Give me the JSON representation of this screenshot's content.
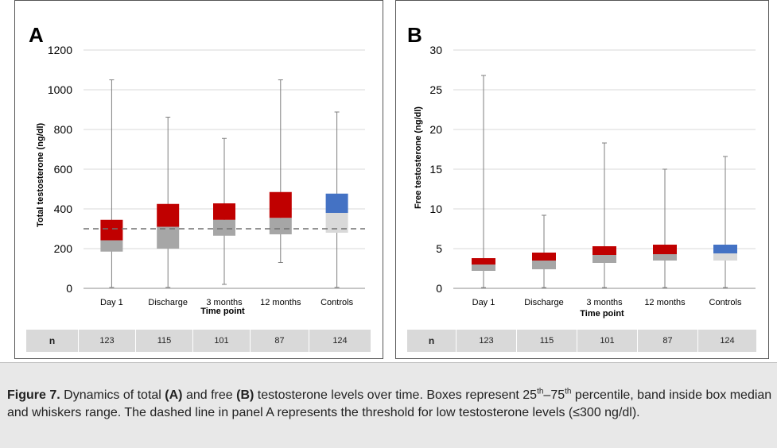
{
  "chart_data": [
    {
      "type": "box",
      "panel_label": "A",
      "categories": [
        "Day 1",
        "Discharge",
        "3 months",
        "12 months",
        "Controls"
      ],
      "xlabel": "Time point",
      "ylabel": "Total testosterone (ng/dl)",
      "ylim": [
        0,
        1200
      ],
      "yticks": [
        0,
        200,
        400,
        600,
        800,
        1000,
        1200
      ],
      "grid": true,
      "boxes": [
        {
          "min": 5,
          "q1": 185,
          "median": 242,
          "q3": 345,
          "max": 1050
        },
        {
          "min": 5,
          "q1": 200,
          "median": 310,
          "q3": 425,
          "max": 862
        },
        {
          "min": 20,
          "q1": 265,
          "median": 345,
          "q3": 428,
          "max": 755
        },
        {
          "min": 130,
          "q1": 272,
          "median": 355,
          "q3": 485,
          "max": 1050
        },
        {
          "min": 5,
          "q1": 280,
          "median": 380,
          "q3": 477,
          "max": 888
        }
      ],
      "reference_line": {
        "value": 300,
        "style": "dashed"
      },
      "n_label": "n",
      "n_values": [
        "123",
        "115",
        "101",
        "87",
        "124"
      ],
      "colors": {
        "upper": "#c00000",
        "lower": "#a6a6a6",
        "control_upper": "#4472c4",
        "control_lower": "#d9d9d9",
        "whisker": "#7f7f7f",
        "grid": "#d9d9d9",
        "reference": "#707070"
      }
    },
    {
      "type": "box",
      "panel_label": "B",
      "categories": [
        "Day 1",
        "Discharge",
        "3 months",
        "12 months",
        "Controls"
      ],
      "xlabel": "Time point",
      "ylabel": "Free testosterone (ng/dl)",
      "ylim": [
        0,
        30
      ],
      "yticks": [
        0,
        5,
        10,
        15,
        20,
        25,
        30
      ],
      "grid": true,
      "boxes": [
        {
          "min": 0.1,
          "q1": 2.2,
          "median": 3.0,
          "q3": 3.8,
          "max": 26.8
        },
        {
          "min": 0.1,
          "q1": 2.4,
          "median": 3.5,
          "q3": 4.5,
          "max": 9.2
        },
        {
          "min": 0.1,
          "q1": 3.2,
          "median": 4.2,
          "q3": 5.3,
          "max": 18.3
        },
        {
          "min": 0.1,
          "q1": 3.5,
          "median": 4.3,
          "q3": 5.5,
          "max": 15.0
        },
        {
          "min": 0.1,
          "q1": 3.5,
          "median": 4.4,
          "q3": 5.5,
          "max": 16.6
        }
      ],
      "n_label": "n",
      "n_values": [
        "123",
        "115",
        "101",
        "87",
        "124"
      ],
      "colors": {
        "upper": "#c00000",
        "lower": "#a6a6a6",
        "control_upper": "#4472c4",
        "control_lower": "#d9d9d9",
        "whisker": "#7f7f7f",
        "grid": "#d9d9d9"
      }
    }
  ],
  "caption": {
    "figure_label": "Figure 7.",
    "t1": " Dynamics of total ",
    "a": "(A)",
    "t2": " and free ",
    "b": "(B)",
    "t3": " testosterone levels over time. Boxes represent 25",
    "sup1": "th",
    "t4": "–75",
    "sup2": "th",
    "t5": " percentile, band inside box median and whiskers range. The dashed line in panel A represents the threshold for low testosterone levels (≤300 ng/dl)."
  }
}
